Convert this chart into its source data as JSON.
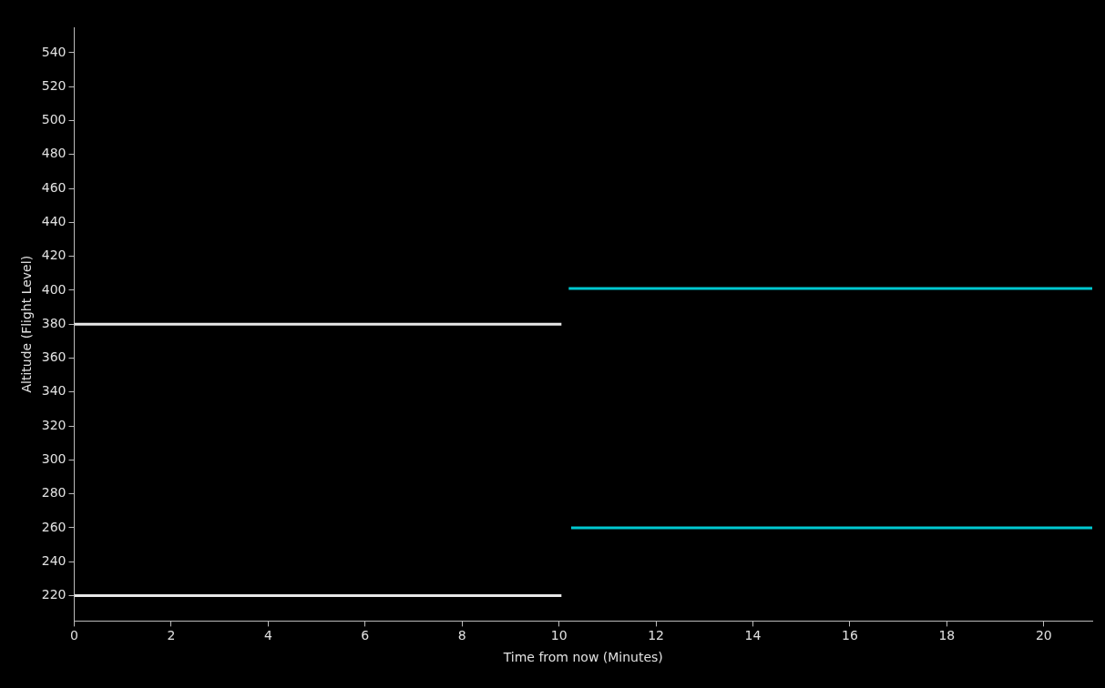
{
  "chart_data": {
    "type": "line",
    "xlabel": "Time from now (Minutes)",
    "ylabel": "Altitude (Flight Level)",
    "xlim": [
      0,
      21
    ],
    "xticks": [
      0,
      2,
      4,
      6,
      8,
      10,
      12,
      14,
      16,
      18,
      20
    ],
    "ylim": [
      205,
      555
    ],
    "yticks": [
      220,
      240,
      260,
      280,
      300,
      320,
      340,
      360,
      380,
      400,
      420,
      440,
      460,
      480,
      500,
      520,
      540
    ],
    "grid": false,
    "legend": false,
    "marker": "none",
    "line_style": "solid",
    "series": [
      {
        "color": "#e8e8e8",
        "x": [
          0,
          10.05
        ],
        "values": [
          380,
          380
        ]
      },
      {
        "color": "#e8e8e8",
        "x": [
          0,
          10.05
        ],
        "values": [
          220,
          220
        ]
      },
      {
        "color": "#00c8d0",
        "x": [
          10.2,
          21
        ],
        "values": [
          401,
          401
        ]
      },
      {
        "color": "#00c8d0",
        "x": [
          10.25,
          21
        ],
        "values": [
          260,
          260
        ]
      }
    ]
  }
}
